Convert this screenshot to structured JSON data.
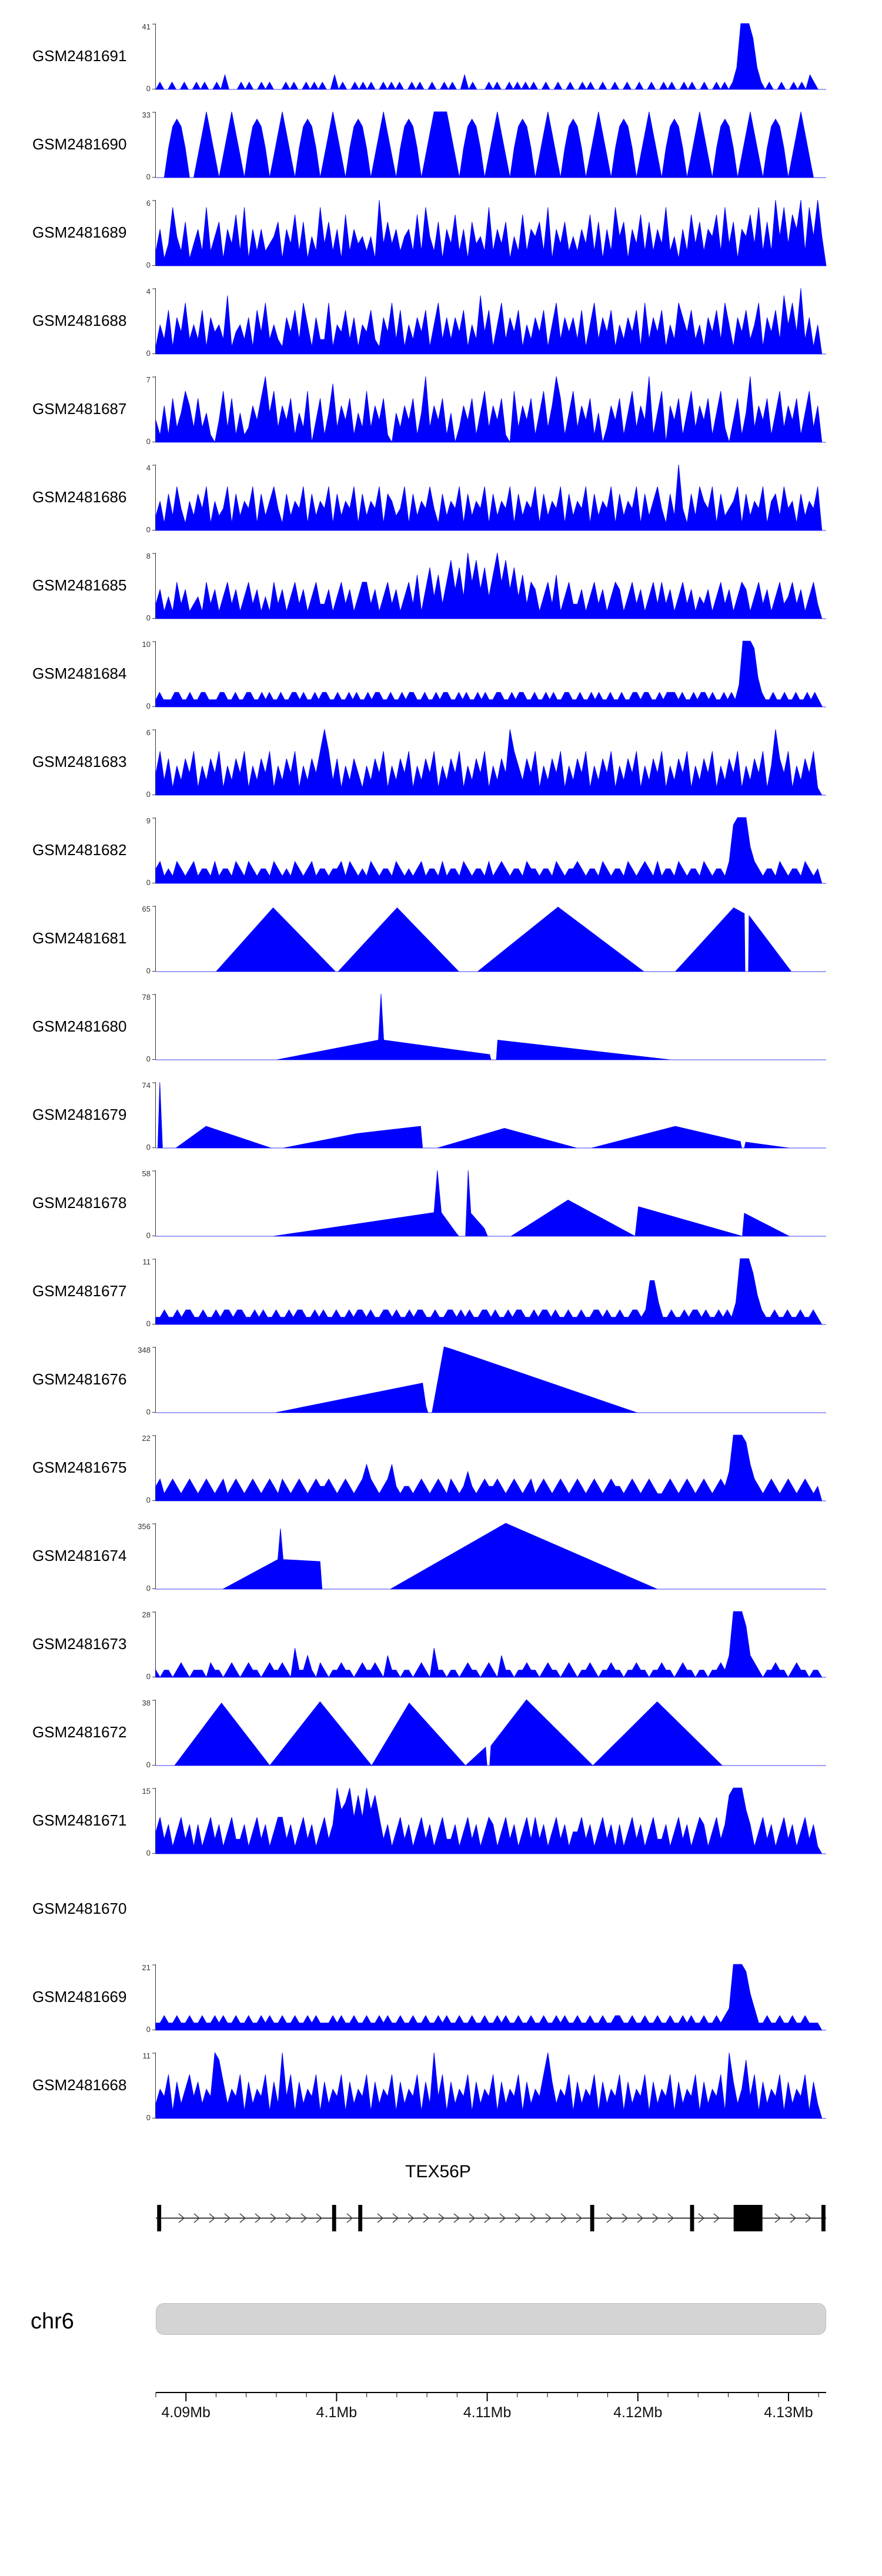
{
  "colors": {
    "signal": "#0000ff",
    "axis_text": "#333333",
    "label_text": "#000000",
    "ideogram_fill": "#d4d4d4",
    "gene_color": "#000000"
  },
  "chart_data": {
    "type": "area",
    "description": "Stacked read-coverage tracks (GSM samples) along chr6 around TEX56P",
    "value_encoding": "profile: one digit per evenly spaced sample point, digit 0-9 = 0-100% of ymax; poly: [x_fraction_of_plot_width, height_fraction_of_ymax] vertices",
    "tracks": [
      {
        "label": "GSM2481691",
        "ymax": "41",
        "ymin": "0",
        "profile": "0100100100101001020001010010100010100101010020100101010010101001010010010100201000101001010101001001001001010010010010010010010100101001001010139997310100100101021000"
      },
      {
        "label": "GSM2481690",
        "ymax": "33",
        "ymin": "0",
        "profile": "0004787400369630369630478740369630478740369630478740369630478740369999630478740369630478740369630478740369630478740369630478740369630478740369630478740369630000"
      },
      {
        "label": "GSM2481689",
        "ymax": "6",
        "ymin": "0",
        "profile": "2513842613528246153728152523461537261428362517253424193635245272842615372516342825361427254628153624253726152846153726253824152736254728361547382629483759284940"
      },
      {
        "label": "GSM2481688",
        "ymax": "4",
        "ymin": "0",
        "profile": "1426153724261534281342516372421536274152271436251436215372614253614725253614283614725361425361472535261472536142536172536142753624153627415362471536284739251400"
      },
      {
        "label": "GSM2481687",
        "ymax": "7",
        "ymin": "0",
        "profile": "3151624752624103726141253694725361427036148253614272536104253614925361402536147253610725361472596147253614025361472539147053614725361472036149253614725361472500"
      },
      {
        "label": "GSM2481686",
        "ymax": "4",
        "ymin": "0",
        "profile": "2415263142536142361524361524631524361524361524361524361542361524363152436152436152436152436152436152436152436152436152463152931526436152346152436145263415243600"
      },
      {
        "label": "GSM2481685",
        "ymax": "8",
        "ymin": "0",
        "profile": "2413152412315241352413524131524135241352241352413552413524135261473625847395847369584736254135261352241352413541352413525241352413241352413541352413523524135200"
      },
      {
        "label": "GSM2481684",
        "ymax": "10",
        "ymin": "0",
        "profile": "1211122112112211122112112211212112112212112122112112121121221121121221121121221121211212112211212211211212112211211212112112112212211212221211212212112121399984211211211211212100"
      },
      {
        "label": "GSM2481683",
        "ymax": "6",
        "ymin": "0",
        "profile": "3625142536142536142536142536142536142536962514253142536142536142536142536142536142539642536142536142536142536142536142536142536142536142536142536149536142536100"
      },
      {
        "label": "GSM2481682",
        "ymax": "9",
        "ymin": "0",
        "profile": "2312132123122131221321321221321213212312212231321213212213212123122131221321221312321221322122132122321221321221321232131221321221321221389995321221321221321200"
      },
      {
        "label": "GSM2481681",
        "ymax": "65",
        "ymin": "0",
        "poly": [
          [
            0,
            0
          ],
          [
            0.09,
            0
          ],
          [
            0.175,
            0.97
          ],
          [
            0.268,
            0
          ],
          [
            0.272,
            0
          ],
          [
            0.36,
            0.97
          ],
          [
            0.452,
            0
          ],
          [
            0.48,
            0
          ],
          [
            0.6,
            0.98
          ],
          [
            0.728,
            0
          ],
          [
            0.775,
            0
          ],
          [
            0.862,
            0.97
          ],
          [
            0.878,
            0.88
          ],
          [
            0.879,
            0
          ],
          [
            0.884,
            0
          ],
          [
            0.885,
            0.85
          ],
          [
            0.948,
            0
          ],
          [
            1,
            0
          ]
        ]
      },
      {
        "label": "GSM2481680",
        "ymax": "78",
        "ymin": "0",
        "poly": [
          [
            0,
            0
          ],
          [
            0.18,
            0
          ],
          [
            0.332,
            0.3
          ],
          [
            0.336,
            1.0
          ],
          [
            0.34,
            0.3
          ],
          [
            0.498,
            0.08
          ],
          [
            0.5,
            0
          ],
          [
            0.508,
            0
          ],
          [
            0.51,
            0.3
          ],
          [
            0.768,
            0
          ],
          [
            1,
            0
          ]
        ]
      },
      {
        "label": "GSM2481679",
        "ymax": "74",
        "ymin": "0",
        "poly": [
          [
            0,
            0
          ],
          [
            0.003,
            0
          ],
          [
            0.006,
            1.0
          ],
          [
            0.01,
            0
          ],
          [
            0.03,
            0
          ],
          [
            0.075,
            0.33
          ],
          [
            0.172,
            0
          ],
          [
            0.19,
            0
          ],
          [
            0.3,
            0.22
          ],
          [
            0.395,
            0.33
          ],
          [
            0.398,
            0
          ],
          [
            0.42,
            0
          ],
          [
            0.52,
            0.3
          ],
          [
            0.628,
            0
          ],
          [
            0.65,
            0
          ],
          [
            0.775,
            0.33
          ],
          [
            0.872,
            0.1
          ],
          [
            0.874,
            0
          ],
          [
            0.878,
            0
          ],
          [
            0.88,
            0.09
          ],
          [
            0.945,
            0
          ],
          [
            1,
            0
          ]
        ]
      },
      {
        "label": "GSM2481678",
        "ymax": "58",
        "ymin": "0",
        "poly": [
          [
            0,
            0
          ],
          [
            0.175,
            0
          ],
          [
            0.415,
            0.36
          ],
          [
            0.42,
            1.0
          ],
          [
            0.426,
            0.36
          ],
          [
            0.448,
            0.05
          ],
          [
            0.452,
            0
          ],
          [
            0.462,
            0
          ],
          [
            0.466,
            1.0
          ],
          [
            0.47,
            0.35
          ],
          [
            0.49,
            0.12
          ],
          [
            0.495,
            0
          ],
          [
            0.53,
            0
          ],
          [
            0.615,
            0.55
          ],
          [
            0.715,
            0
          ],
          [
            0.72,
            0.45
          ],
          [
            0.875,
            0
          ],
          [
            0.878,
            0.35
          ],
          [
            0.945,
            0
          ],
          [
            1,
            0
          ]
        ]
      },
      {
        "label": "GSM2481677",
        "ymax": "11",
        "ymin": "0",
        "profile": "1121121221121121221221121211211212211212112112122121122121121221121122121211221211212211212212112112112212112112212663112112122121121213999742112112112112100"
      },
      {
        "label": "GSM2481676",
        "ymax": "348",
        "ymin": "0",
        "poly": [
          [
            0,
            0
          ],
          [
            0.178,
            0
          ],
          [
            0.398,
            0.45
          ],
          [
            0.403,
            0.1
          ],
          [
            0.406,
            0
          ],
          [
            0.412,
            0
          ],
          [
            0.43,
            1.0
          ],
          [
            0.44,
            0.97
          ],
          [
            0.718,
            0
          ],
          [
            1,
            0
          ]
        ]
      },
      {
        "label": "GSM2481675",
        "ymax": "22",
        "ymin": "0",
        "profile": "2312321232123212312321232123213212321232232123212353212352122123212321321242123223212321231232123212321232123221232123211232123212321232499985321232123212321200"
      },
      {
        "label": "GSM2481674",
        "ymax": "356",
        "ymin": "0",
        "poly": [
          [
            0,
            0
          ],
          [
            0.1,
            0
          ],
          [
            0.182,
            0.45
          ],
          [
            0.186,
            0.92
          ],
          [
            0.19,
            0.45
          ],
          [
            0.245,
            0.42
          ],
          [
            0.248,
            0
          ],
          [
            0.35,
            0
          ],
          [
            0.522,
            1.0
          ],
          [
            0.748,
            0
          ],
          [
            1,
            0
          ]
        ]
      },
      {
        "label": "GSM2481673",
        "ymax": "28",
        "ymin": "0",
        "profile": "1011012101110211012101211012112104113102101121101211210311011012104110110121101210311011211012110121011210112110112110112110121101101121399973210112110121101100"
      },
      {
        "label": "GSM2481672",
        "ymax": "38",
        "ymin": "0",
        "poly": [
          [
            0,
            0
          ],
          [
            0.028,
            0
          ],
          [
            0.098,
            0.95
          ],
          [
            0.17,
            0
          ],
          [
            0.245,
            0.97
          ],
          [
            0.322,
            0
          ],
          [
            0.378,
            0.95
          ],
          [
            0.462,
            0
          ],
          [
            0.492,
            0.28
          ],
          [
            0.494,
            0
          ],
          [
            0.498,
            0
          ],
          [
            0.5,
            0.3
          ],
          [
            0.553,
            1.0
          ],
          [
            0.652,
            0
          ],
          [
            0.748,
            0.97
          ],
          [
            0.845,
            0
          ],
          [
            1,
            0
          ]
        ]
      },
      {
        "label": "GSM2481671",
        "ymax": "15",
        "ymin": "0",
        "profile": "3524135241413524135224135241355241352413524967958596852413524135241352241352413541352413525241352413352413524141352413522413524135413524899964135241352413524100"
      },
      {
        "label": "GSM2481670",
        "empty": true
      },
      {
        "label": "GSM2481669",
        "ymax": "21",
        "ymin": "0",
        "profile": "1121121121121121211211211212112112112121112121121121121211211211211212112112112112121121121121121211211211211221121121121121121211211212399985311211211211211100"
      },
      {
        "label": "GSM2481668",
        "ymax": "11",
        "ymin": "0",
        "profile": "2436152463524398524361524361529361524361524361524361524361524361529361524361524361524361524369524361524361524361524361524361524361524361952483615243615243615200"
      }
    ],
    "gene_track": {
      "title": "TEX56P",
      "strand": "right",
      "exons": [
        [
          0.002,
          0.008
        ],
        [
          0.263,
          0.269
        ],
        [
          0.302,
          0.308
        ],
        [
          0.648,
          0.654
        ],
        [
          0.797,
          0.803
        ],
        [
          0.862,
          0.905
        ],
        [
          0.993,
          0.999
        ]
      ]
    },
    "chromosome": {
      "label": "chr6"
    },
    "axis": {
      "unit": "Mb",
      "start": 4.088,
      "end": 4.1325,
      "minor_tick_step": 0.002,
      "major_ticks": [
        {
          "value": 4.09,
          "label": "4.09Mb"
        },
        {
          "value": 4.1,
          "label": "4.1Mb"
        },
        {
          "value": 4.11,
          "label": "4.11Mb"
        },
        {
          "value": 4.12,
          "label": "4.12Mb"
        },
        {
          "value": 4.13,
          "label": "4.13Mb"
        }
      ]
    }
  }
}
